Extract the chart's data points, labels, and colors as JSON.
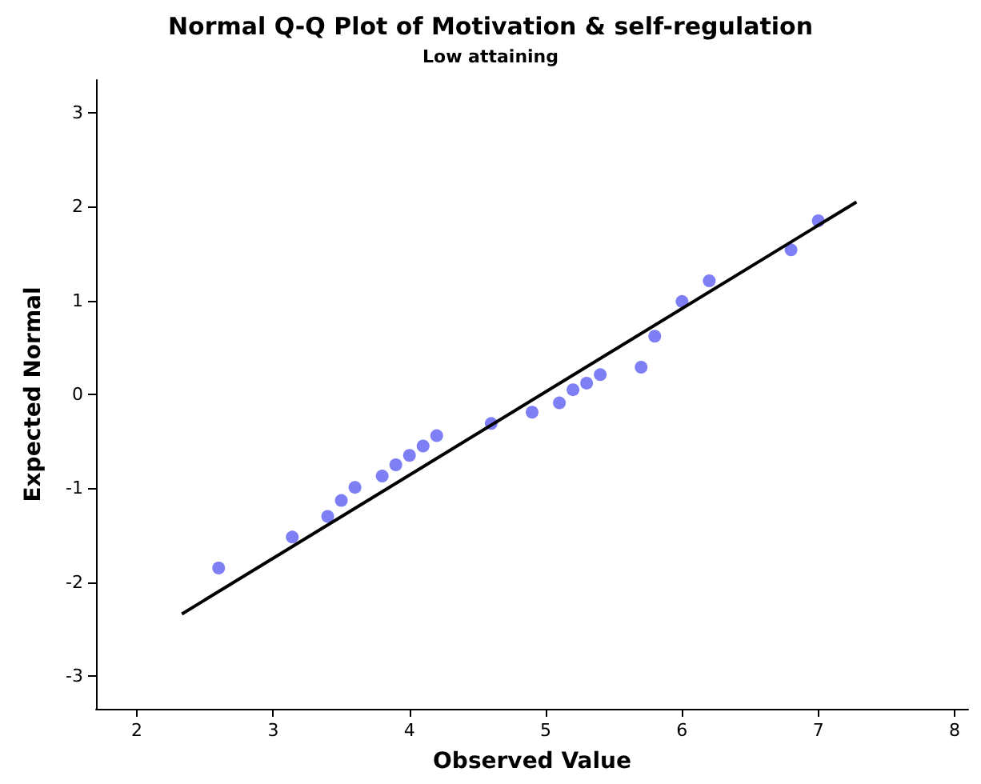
{
  "chart_data": {
    "type": "scatter",
    "title": "Normal Q-Q Plot of Motivation & self-regulation",
    "subtitle": "Low attaining",
    "xlabel": "Observed Value",
    "ylabel": "Expected Normal",
    "xlim": [
      1.7,
      8.1
    ],
    "xticks": [
      2,
      3,
      4,
      5,
      6,
      7,
      8
    ],
    "ylim": [
      -3.35,
      3.35
    ],
    "yticks": [
      -3,
      -2,
      -1,
      0,
      1,
      2,
      3
    ],
    "grid": false,
    "marker": "circle",
    "series": [
      {
        "color": "#5e5ef2",
        "x": [
          2.6,
          3.14,
          3.4,
          3.5,
          3.6,
          3.8,
          3.9,
          4.0,
          4.1,
          4.2,
          4.6,
          4.9,
          5.1,
          5.2,
          5.3,
          5.4,
          5.7,
          5.8,
          6.0,
          6.2,
          6.8,
          7.0
        ],
        "values": [
          -1.85,
          -1.52,
          -1.3,
          -1.13,
          -0.99,
          -0.87,
          -0.75,
          -0.65,
          -0.55,
          -0.44,
          -0.31,
          -0.19,
          -0.09,
          0.05,
          0.12,
          0.21,
          0.29,
          0.62,
          0.99,
          1.21,
          1.54,
          1.85
        ]
      },
      {
        "type": "line",
        "color": "#000000",
        "marker": "none",
        "line_style": "solid",
        "x": [
          2.33,
          7.28
        ],
        "values": [
          -2.34,
          2.05
        ]
      }
    ]
  }
}
